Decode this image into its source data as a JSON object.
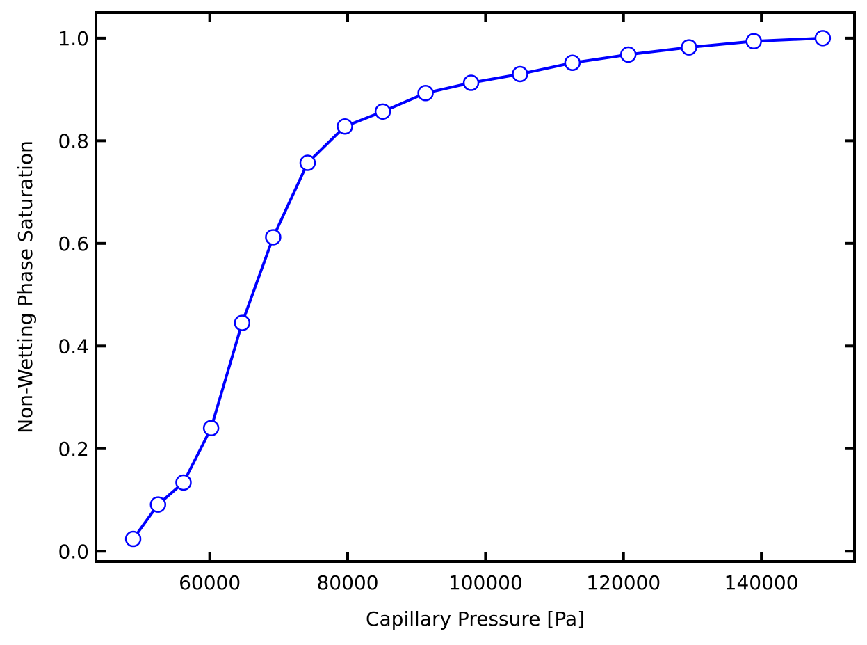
{
  "chart_data": {
    "type": "line",
    "title": "",
    "xlabel": "Capillary Pressure [Pa]",
    "ylabel": "Non-Wetting Phase Saturation",
    "xlim": [
      43500,
      153500
    ],
    "ylim": [
      -0.02,
      1.05
    ],
    "x_ticks": [
      60000,
      80000,
      100000,
      120000,
      140000
    ],
    "x_tick_labels": [
      "60000",
      "80000",
      "100000",
      "120000",
      "140000"
    ],
    "y_ticks": [
      0.0,
      0.2,
      0.4,
      0.6,
      0.8,
      1.0
    ],
    "y_tick_labels": [
      "0.0",
      "0.2",
      "0.4",
      "0.6",
      "0.8",
      "1.0"
    ],
    "grid": false,
    "legend": "none",
    "series": [
      {
        "color": "#0000ff",
        "marker": "circle",
        "marker_face": "#ffffff",
        "x": [
          48900,
          52500,
          56200,
          60200,
          64700,
          69200,
          74200,
          79600,
          85100,
          91300,
          97900,
          105000,
          112600,
          120700,
          129500,
          138900,
          148900
        ],
        "y": [
          0.024,
          0.091,
          0.134,
          0.24,
          0.445,
          0.612,
          0.757,
          0.828,
          0.857,
          0.893,
          0.913,
          0.93,
          0.952,
          0.968,
          0.982,
          0.994,
          1.0
        ]
      }
    ]
  }
}
